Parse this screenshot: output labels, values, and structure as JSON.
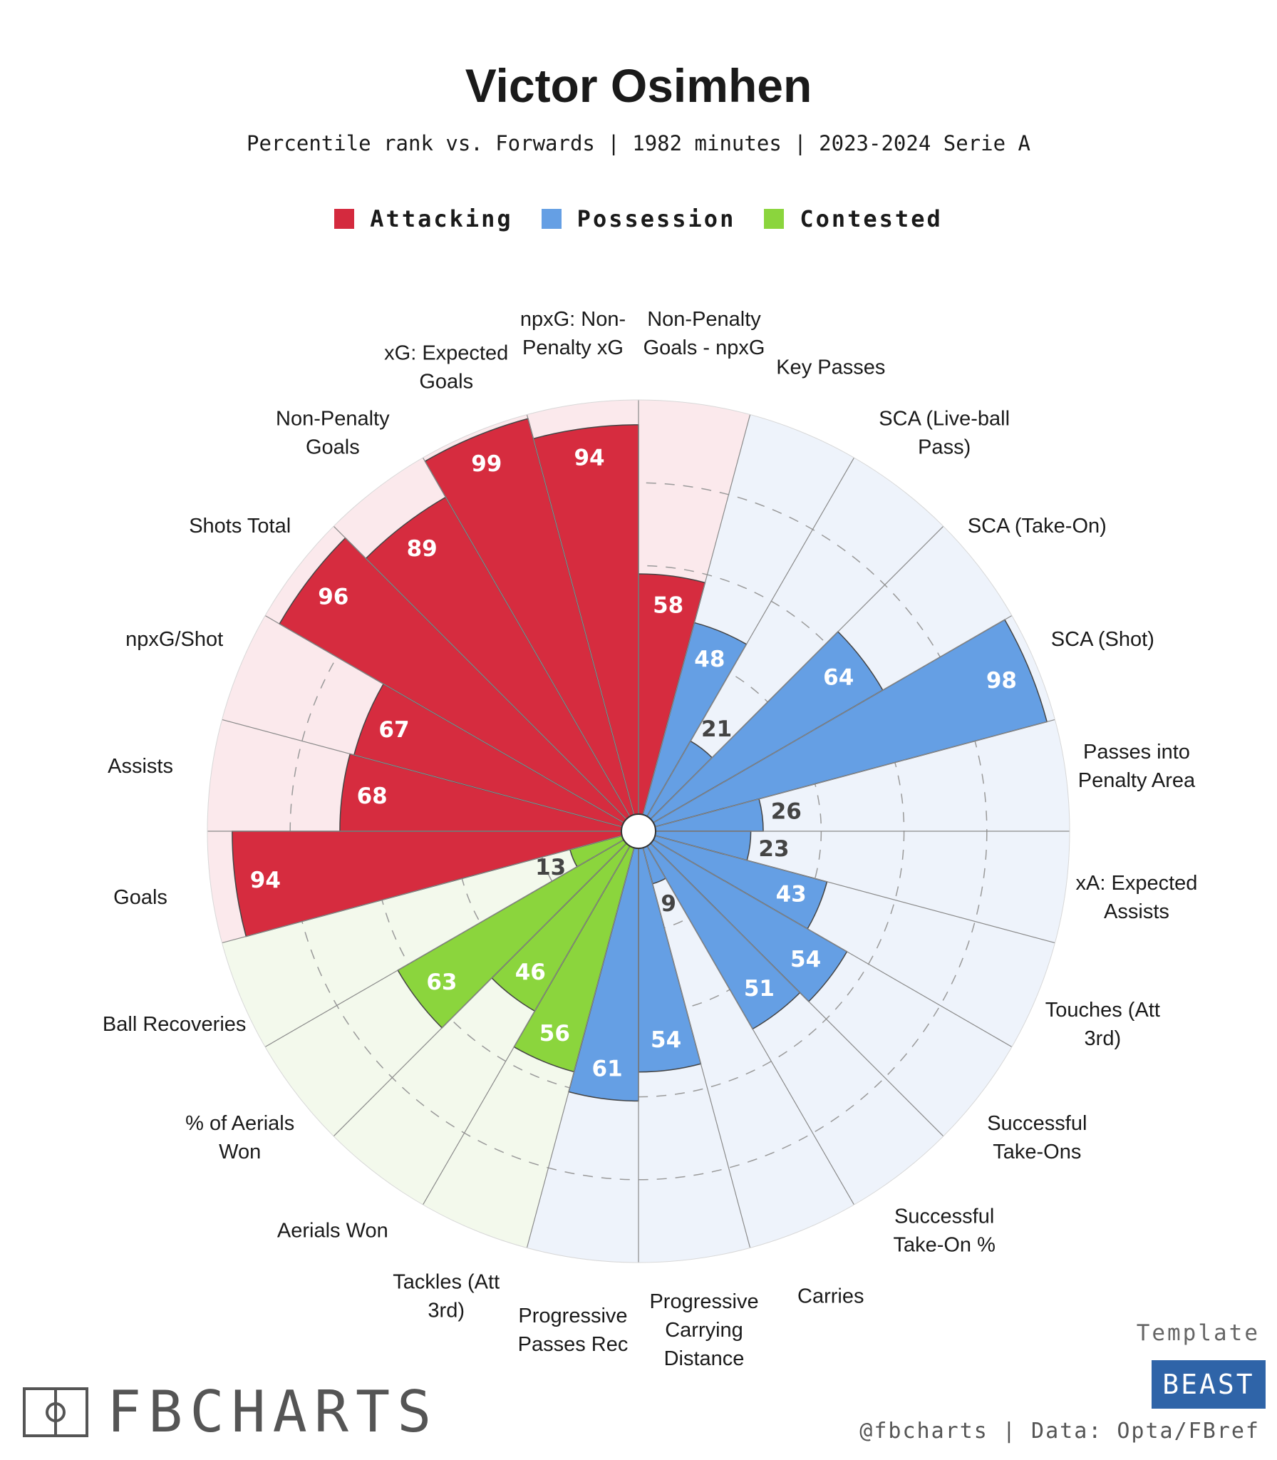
{
  "header": {
    "title": "Victor Osimhen",
    "subtitle": "Percentile rank vs. Forwards | 1982 minutes | 2023-2024 Serie A"
  },
  "legend": [
    {
      "label": "Attacking",
      "color": "#d42a3e"
    },
    {
      "label": "Possession",
      "color": "#659fe4"
    },
    {
      "label": "Contested",
      "color": "#8bd53d"
    }
  ],
  "chart_data": {
    "type": "bar",
    "subtype": "polar-pizza",
    "title": "Victor Osimhen",
    "subtitle": "Percentile rank vs. Forwards | 1982 minutes | 2023-2024 Serie A",
    "ylim": [
      0,
      100
    ],
    "grid": true,
    "legend_position": "top",
    "categories": [
      "Non-Penalty Goals - npxG",
      "Key Passes",
      "SCA (Live-ball Pass)",
      "SCA (Take-On)",
      "SCA (Shot)",
      "Passes into Penalty Area",
      "xA: Expected Assists",
      "Touches (Att 3rd)",
      "Successful Take-Ons",
      "Successful Take-On %",
      "Carries",
      "Progressive Carrying Distance",
      "Progressive Passes Rec",
      "Tackles (Att 3rd)",
      "Aerials Won",
      "% of Aerials Won",
      "Ball Recoveries",
      "Goals",
      "Assists",
      "npxG/Shot",
      "Shots Total",
      "Non-Penalty Goals",
      "xG: Expected Goals",
      "npxG: Non-Penalty xG"
    ],
    "values": [
      58,
      48,
      21,
      64,
      98,
      26,
      23,
      43,
      54,
      51,
      9,
      54,
      61,
      56,
      46,
      63,
      13,
      94,
      68,
      67,
      96,
      89,
      99,
      94
    ],
    "groups": [
      "Attacking",
      "Possession",
      "Possession",
      "Possession",
      "Possession",
      "Possession",
      "Possession",
      "Possession",
      "Possession",
      "Possession",
      "Possession",
      "Possession",
      "Possession",
      "Contested",
      "Contested",
      "Contested",
      "Contested",
      "Attacking",
      "Attacking",
      "Attacking",
      "Attacking",
      "Attacking",
      "Attacking",
      "Attacking"
    ]
  },
  "label_lines": [
    [
      "Non-Penalty",
      "Goals - npxG"
    ],
    [
      "Key Passes"
    ],
    [
      "SCA (Live-ball",
      "Pass)"
    ],
    [
      "SCA (Take-On)"
    ],
    [
      "SCA (Shot)"
    ],
    [
      "Passes into",
      "Penalty Area"
    ],
    [
      "xA: Expected",
      "Assists"
    ],
    [
      "Touches (Att",
      "3rd)"
    ],
    [
      "Successful",
      "Take-Ons"
    ],
    [
      "Successful",
      "Take-On %"
    ],
    [
      "Carries"
    ],
    [
      "Progressive",
      "Carrying",
      "Distance"
    ],
    [
      "Progressive",
      "Passes Rec"
    ],
    [
      "Tackles (Att",
      "3rd)"
    ],
    [
      "Aerials Won"
    ],
    [
      "% of Aerials",
      "Won"
    ],
    [
      "Ball Recoveries"
    ],
    [
      "Goals"
    ],
    [
      "Assists"
    ],
    [
      "npxG/Shot"
    ],
    [
      "Shots Total"
    ],
    [
      "Non-Penalty",
      "Goals"
    ],
    [
      "xG: Expected",
      "Goals"
    ],
    [
      "npxG: Non-",
      "Penalty xG"
    ]
  ],
  "colors": {
    "Attacking": {
      "fill": "#d62c3f",
      "bg": "#fbe9ec"
    },
    "Possession": {
      "fill": "#659fe4",
      "bg": "#eef3fb"
    },
    "Contested": {
      "fill": "#8bd53d",
      "bg": "#f3f9ec"
    }
  },
  "branding": {
    "logo_text": "FBCHARTS",
    "template_label": "Template",
    "badge": "BEAST",
    "credit": "@fbcharts | Data: Opta/FBref"
  }
}
